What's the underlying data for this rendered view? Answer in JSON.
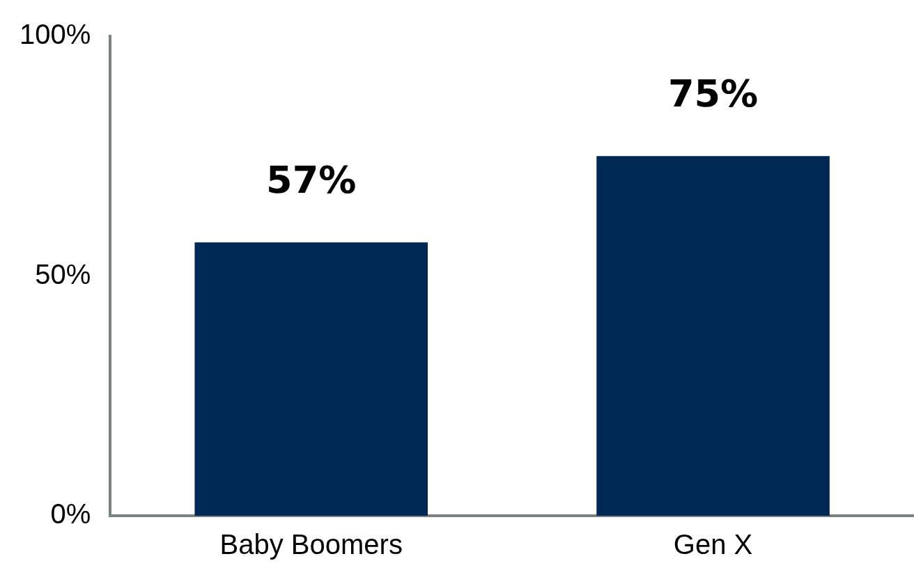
{
  "chart_data": {
    "type": "bar",
    "categories": [
      "Baby Boomers",
      "Gen X"
    ],
    "values": [
      57,
      75
    ],
    "color": "#002855",
    "value_labels": [
      "57%",
      "75%"
    ],
    "ylim": [
      0,
      100
    ],
    "yticks": [
      {
        "value": 0,
        "label": "0%"
      },
      {
        "value": 50,
        "label": "50%"
      },
      {
        "value": 100,
        "label": "100%"
      }
    ],
    "grid": false,
    "legend": false
  }
}
